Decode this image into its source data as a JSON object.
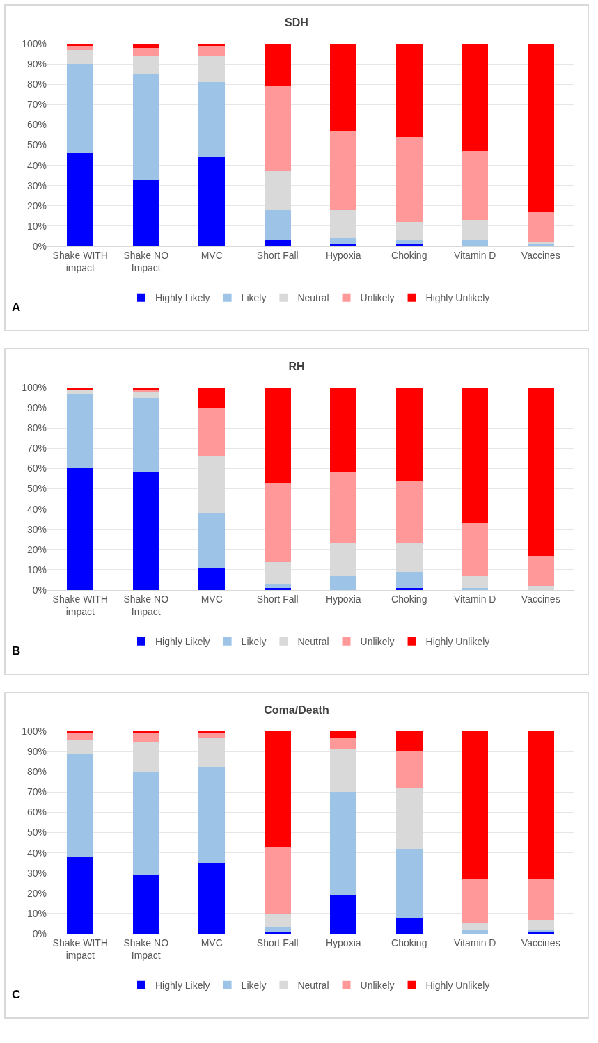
{
  "chart_data": [
    {
      "type": "bar",
      "stacked": true,
      "title": "SDH",
      "categories": [
        "Shake WITH impact",
        "Shake NO Impact",
        "MVC",
        "Short Fall",
        "Hypoxia",
        "Choking",
        "Vitamin D",
        "Vaccines"
      ],
      "series": [
        {
          "name": "Highly Likely",
          "color": "#0000ff",
          "values": [
            46,
            33,
            44,
            3,
            1,
            1,
            0,
            0
          ]
        },
        {
          "name": "Likely",
          "color": "#9dc3e6",
          "values": [
            44,
            52,
            37,
            15,
            3,
            2,
            3,
            1
          ]
        },
        {
          "name": "Neutral",
          "color": "#d9d9d9",
          "values": [
            7,
            9,
            13,
            19,
            14,
            9,
            10,
            1
          ]
        },
        {
          "name": "Unlikely",
          "color": "#ff9999",
          "values": [
            2,
            4,
            5,
            42,
            39,
            42,
            34,
            15
          ]
        },
        {
          "name": "Highly Unlikely",
          "color": "#ff0000",
          "values": [
            1,
            2,
            1,
            21,
            43,
            46,
            53,
            83
          ]
        }
      ],
      "ylim": [
        0,
        100
      ],
      "yticks": [
        {
          "value": 0,
          "label": "0%"
        },
        {
          "value": 10,
          "label": "10%"
        },
        {
          "value": 20,
          "label": "20%"
        },
        {
          "value": 30,
          "label": "30%"
        },
        {
          "value": 40,
          "label": "40%"
        },
        {
          "value": 50,
          "label": "50%"
        },
        {
          "value": 60,
          "label": "60%"
        },
        {
          "value": 70,
          "label": "70%"
        },
        {
          "value": 80,
          "label": "80%"
        },
        {
          "value": 90,
          "label": "90%"
        },
        {
          "value": 100,
          "label": "100%"
        }
      ],
      "grid": "y",
      "legend": "bottom",
      "annotations": [
        "A"
      ]
    },
    {
      "type": "bar",
      "stacked": true,
      "title": "RH",
      "categories": [
        "Shake WITH impact",
        "Shake NO Impact",
        "MVC",
        "Short Fall",
        "Hypoxia",
        "Choking",
        "Vitamin D",
        "Vaccines"
      ],
      "series": [
        {
          "name": "Highly Likely",
          "color": "#0000ff",
          "values": [
            60,
            58,
            11,
            1,
            0,
            1,
            0,
            0
          ]
        },
        {
          "name": "Likely",
          "color": "#9dc3e6",
          "values": [
            37,
            37,
            27,
            2,
            7,
            8,
            1,
            0
          ]
        },
        {
          "name": "Neutral",
          "color": "#d9d9d9",
          "values": [
            2,
            3,
            28,
            11,
            16,
            14,
            6,
            2
          ]
        },
        {
          "name": "Unlikely",
          "color": "#ff9999",
          "values": [
            0,
            1,
            24,
            39,
            35,
            31,
            26,
            15
          ]
        },
        {
          "name": "Highly Unlikely",
          "color": "#ff0000",
          "values": [
            1,
            1,
            10,
            47,
            42,
            46,
            67,
            83
          ]
        }
      ],
      "ylim": [
        0,
        100
      ],
      "yticks": [
        {
          "value": 0,
          "label": "0%"
        },
        {
          "value": 10,
          "label": "10%"
        },
        {
          "value": 20,
          "label": "20%"
        },
        {
          "value": 30,
          "label": "30%"
        },
        {
          "value": 40,
          "label": "40%"
        },
        {
          "value": 50,
          "label": "50%"
        },
        {
          "value": 60,
          "label": "60%"
        },
        {
          "value": 70,
          "label": "70%"
        },
        {
          "value": 80,
          "label": "80%"
        },
        {
          "value": 90,
          "label": "90%"
        },
        {
          "value": 100,
          "label": "100%"
        }
      ],
      "grid": "y",
      "legend": "bottom",
      "annotations": [
        "B"
      ]
    },
    {
      "type": "bar",
      "stacked": true,
      "title": "Coma/Death",
      "categories": [
        "Shake WITH impact",
        "Shake NO Impact",
        "MVC",
        "Short Fall",
        "Hypoxia",
        "Choking",
        "Vitamin D",
        "Vaccines"
      ],
      "series": [
        {
          "name": "Highly Likely",
          "color": "#0000ff",
          "values": [
            38,
            29,
            35,
            1,
            19,
            8,
            0,
            1
          ]
        },
        {
          "name": "Likely",
          "color": "#9dc3e6",
          "values": [
            51,
            51,
            47,
            2,
            51,
            34,
            2,
            1
          ]
        },
        {
          "name": "Neutral",
          "color": "#d9d9d9",
          "values": [
            7,
            15,
            15,
            7,
            21,
            30,
            3,
            5
          ]
        },
        {
          "name": "Unlikely",
          "color": "#ff9999",
          "values": [
            3,
            4,
            2,
            33,
            6,
            18,
            22,
            20
          ]
        },
        {
          "name": "Highly Unlikely",
          "color": "#ff0000",
          "values": [
            1,
            1,
            1,
            57,
            3,
            10,
            73,
            73
          ]
        }
      ],
      "ylim": [
        0,
        100
      ],
      "yticks": [
        {
          "value": 0,
          "label": "0%"
        },
        {
          "value": 10,
          "label": "10%"
        },
        {
          "value": 20,
          "label": "20%"
        },
        {
          "value": 30,
          "label": "30%"
        },
        {
          "value": 40,
          "label": "40%"
        },
        {
          "value": 50,
          "label": "50%"
        },
        {
          "value": 60,
          "label": "60%"
        },
        {
          "value": 70,
          "label": "70%"
        },
        {
          "value": 80,
          "label": "80%"
        },
        {
          "value": 90,
          "label": "90%"
        },
        {
          "value": 100,
          "label": "100%"
        }
      ],
      "grid": "y",
      "legend": "bottom",
      "annotations": [
        "C"
      ]
    }
  ]
}
